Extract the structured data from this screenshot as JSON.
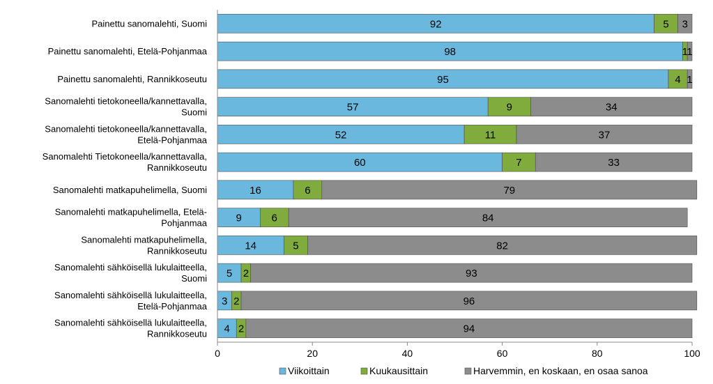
{
  "chart_data": {
    "type": "bar",
    "orientation": "horizontal",
    "stacked": true,
    "categories": [
      [
        "Painettu sanomalehti, Suomi"
      ],
      [
        "Painettu sanomalehti, Etelä-Pohjanmaa"
      ],
      [
        "Painettu sanomalehti, Rannikkoseutu"
      ],
      [
        "Sanomalehti tietokoneella/kannettavalla,",
        "Suomi"
      ],
      [
        "Sanomalehti tietokoneella/kannettavalla,",
        "Etelä-Pohjanmaa"
      ],
      [
        "Sanomalehti Tietokoneella/kannettavalla,",
        "Rannikkoseutu"
      ],
      [
        "Sanomalehti matkapuhelimella, Suomi"
      ],
      [
        "Sanomalehti matkapuhelimella, Etelä-",
        "Pohjanmaa"
      ],
      [
        "Sanomalehti matkapuhelimella,",
        "Rannikkoseutu"
      ],
      [
        "Sanomalehti sähköisellä lukulaitteella,",
        "Suomi"
      ],
      [
        "Sanomalehti sähköisellä lukulaitteella,",
        "Etelä-Pohjanmaa"
      ],
      [
        "Sanomalehti sähköisellä lukulaitteella,",
        "Rannikkoseutu"
      ]
    ],
    "series": [
      {
        "name": "Viikoittain",
        "color": "#6bb8de",
        "values": [
          92,
          98,
          95,
          57,
          52,
          60,
          16,
          9,
          14,
          5,
          3,
          4
        ]
      },
      {
        "name": "Kuukausittain",
        "color": "#7fac3c",
        "values": [
          5,
          1,
          4,
          9,
          11,
          7,
          6,
          6,
          5,
          2,
          2,
          2
        ]
      },
      {
        "name": "Harvemmin, en koskaan, en osaa sanoa",
        "color": "#8c8c8c",
        "values": [
          3,
          1,
          1,
          34,
          37,
          33,
          79,
          84,
          82,
          93,
          96,
          94
        ]
      }
    ],
    "xlim": [
      0,
      100
    ],
    "xticks": [
      0,
      20,
      40,
      60,
      80,
      100
    ],
    "legend_position": "bottom",
    "grid": false
  }
}
